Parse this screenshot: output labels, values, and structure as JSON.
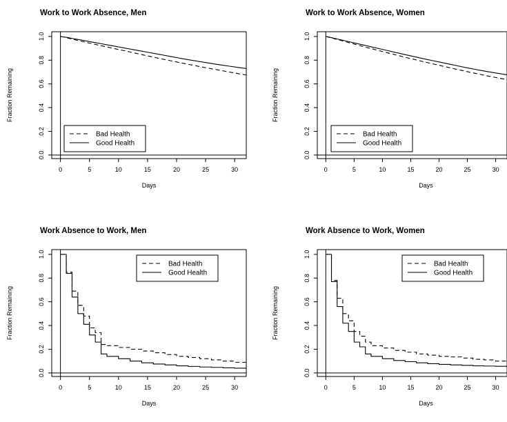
{
  "chart_data": [
    {
      "type": "line",
      "title": "Work to Work Absence, Men",
      "xlabel": "Days",
      "ylabel": "Fraction Remaining",
      "xlim": [
        -1.5,
        32
      ],
      "ylim": [
        -0.03,
        1.04
      ],
      "xticks": [
        0,
        5,
        10,
        15,
        20,
        25,
        30
      ],
      "yticks": [
        "0.0",
        "0.2",
        "0.4",
        "0.6",
        "0.8",
        "1.0"
      ],
      "legend": "bottom-left",
      "series": [
        {
          "name": "Bad Health",
          "dash": "dashed",
          "x": [
            0,
            1,
            2,
            3,
            4,
            5,
            6,
            7,
            8,
            9,
            10,
            11,
            12,
            13,
            14,
            15,
            16,
            17,
            18,
            19,
            20,
            21,
            22,
            23,
            24,
            25,
            26,
            27,
            28,
            29,
            30,
            31,
            32
          ],
          "y": [
            1.0,
            0.99,
            0.978,
            0.966,
            0.955,
            0.944,
            0.933,
            0.922,
            0.912,
            0.901,
            0.89,
            0.88,
            0.869,
            0.858,
            0.847,
            0.836,
            0.826,
            0.815,
            0.805,
            0.795,
            0.785,
            0.775,
            0.765,
            0.756,
            0.746,
            0.737,
            0.728,
            0.719,
            0.71,
            0.701,
            0.692,
            0.683,
            0.675
          ]
        },
        {
          "name": "Good Health",
          "dash": "solid",
          "x": [
            0,
            1,
            2,
            3,
            4,
            5,
            6,
            7,
            8,
            9,
            10,
            11,
            12,
            13,
            14,
            15,
            16,
            17,
            18,
            19,
            20,
            21,
            22,
            23,
            24,
            25,
            26,
            27,
            28,
            29,
            30,
            31,
            32
          ],
          "y": [
            1.0,
            0.993,
            0.984,
            0.975,
            0.966,
            0.957,
            0.948,
            0.939,
            0.93,
            0.921,
            0.912,
            0.903,
            0.894,
            0.885,
            0.876,
            0.867,
            0.858,
            0.849,
            0.84,
            0.831,
            0.822,
            0.813,
            0.804,
            0.796,
            0.788,
            0.78,
            0.772,
            0.764,
            0.757,
            0.75,
            0.743,
            0.736,
            0.73
          ]
        }
      ]
    },
    {
      "type": "line",
      "title": "Work to Work Absence, Women",
      "xlabel": "Days",
      "ylabel": "Fraction Remaining",
      "xlim": [
        -1.5,
        32
      ],
      "ylim": [
        -0.03,
        1.04
      ],
      "xticks": [
        0,
        5,
        10,
        15,
        20,
        25,
        30
      ],
      "yticks": [
        "0.0",
        "0.2",
        "0.4",
        "0.6",
        "0.8",
        "1.0"
      ],
      "legend": "bottom-left",
      "series": [
        {
          "name": "Bad Health",
          "dash": "dashed",
          "x": [
            0,
            1,
            2,
            3,
            4,
            5,
            6,
            7,
            8,
            9,
            10,
            11,
            12,
            13,
            14,
            15,
            16,
            17,
            18,
            19,
            20,
            21,
            22,
            23,
            24,
            25,
            26,
            27,
            28,
            29,
            30,
            31,
            32
          ],
          "y": [
            1.0,
            0.988,
            0.975,
            0.962,
            0.949,
            0.936,
            0.923,
            0.91,
            0.898,
            0.885,
            0.873,
            0.861,
            0.849,
            0.837,
            0.825,
            0.813,
            0.802,
            0.79,
            0.779,
            0.768,
            0.757,
            0.746,
            0.735,
            0.724,
            0.714,
            0.703,
            0.693,
            0.683,
            0.673,
            0.663,
            0.654,
            0.645,
            0.636
          ]
        },
        {
          "name": "Good Health",
          "dash": "solid",
          "x": [
            0,
            1,
            2,
            3,
            4,
            5,
            6,
            7,
            8,
            9,
            10,
            11,
            12,
            13,
            14,
            15,
            16,
            17,
            18,
            19,
            20,
            21,
            22,
            23,
            24,
            25,
            26,
            27,
            28,
            29,
            30,
            31,
            32
          ],
          "y": [
            1.0,
            0.99,
            0.979,
            0.968,
            0.957,
            0.946,
            0.935,
            0.924,
            0.913,
            0.902,
            0.891,
            0.88,
            0.869,
            0.858,
            0.847,
            0.836,
            0.826,
            0.815,
            0.805,
            0.795,
            0.785,
            0.775,
            0.765,
            0.755,
            0.745,
            0.735,
            0.726,
            0.717,
            0.708,
            0.7,
            0.692,
            0.684,
            0.677
          ]
        }
      ]
    },
    {
      "type": "line",
      "title": "Work Absence to Work, Men",
      "xlabel": "Days",
      "ylabel": "Fraction Remaining",
      "xlim": [
        -1.5,
        32
      ],
      "ylim": [
        -0.03,
        1.04
      ],
      "xticks": [
        0,
        5,
        10,
        15,
        20,
        25,
        30
      ],
      "yticks": [
        "0.0",
        "0.2",
        "0.4",
        "0.6",
        "0.8",
        "1.0"
      ],
      "legend": "top-right",
      "step": true,
      "series": [
        {
          "name": "Bad Health",
          "dash": "dashed",
          "x": [
            0,
            1,
            2,
            3,
            4,
            5,
            6,
            7,
            8,
            10,
            12,
            14,
            16,
            18,
            20,
            22,
            24,
            26,
            28,
            30,
            32
          ],
          "y": [
            1.0,
            0.85,
            0.69,
            0.57,
            0.48,
            0.38,
            0.34,
            0.24,
            0.23,
            0.215,
            0.2,
            0.185,
            0.17,
            0.155,
            0.14,
            0.13,
            0.12,
            0.11,
            0.1,
            0.09,
            0.08
          ]
        },
        {
          "name": "Good Health",
          "dash": "solid",
          "x": [
            0,
            1,
            2,
            3,
            4,
            5,
            6,
            7,
            8,
            10,
            12,
            14,
            16,
            18,
            20,
            22,
            24,
            26,
            28,
            30,
            32
          ],
          "y": [
            1.0,
            0.84,
            0.64,
            0.5,
            0.41,
            0.32,
            0.26,
            0.16,
            0.14,
            0.12,
            0.1,
            0.085,
            0.075,
            0.068,
            0.06,
            0.055,
            0.05,
            0.047,
            0.043,
            0.04,
            0.035
          ]
        }
      ]
    },
    {
      "type": "line",
      "title": "Work Absence to Work, Women",
      "xlabel": "Days",
      "ylabel": "Fraction Remaining",
      "xlim": [
        -1.5,
        32
      ],
      "ylim": [
        -0.03,
        1.04
      ],
      "xticks": [
        0,
        5,
        10,
        15,
        20,
        25,
        30
      ],
      "yticks": [
        "0.0",
        "0.2",
        "0.4",
        "0.6",
        "0.8",
        "1.0"
      ],
      "legend": "top-right",
      "step": true,
      "series": [
        {
          "name": "Bad Health",
          "dash": "dashed",
          "x": [
            0,
            1,
            2,
            3,
            4,
            5,
            6,
            7,
            8,
            10,
            12,
            14,
            16,
            18,
            20,
            22,
            24,
            26,
            28,
            30,
            32
          ],
          "y": [
            1.0,
            0.78,
            0.63,
            0.5,
            0.44,
            0.35,
            0.31,
            0.26,
            0.23,
            0.21,
            0.19,
            0.175,
            0.16,
            0.15,
            0.14,
            0.135,
            0.125,
            0.115,
            0.11,
            0.1,
            0.095
          ]
        },
        {
          "name": "Good Health",
          "dash": "solid",
          "x": [
            0,
            1,
            2,
            3,
            4,
            5,
            6,
            7,
            8,
            10,
            12,
            14,
            16,
            18,
            20,
            22,
            24,
            26,
            28,
            30,
            32
          ],
          "y": [
            1.0,
            0.77,
            0.56,
            0.42,
            0.35,
            0.26,
            0.22,
            0.16,
            0.14,
            0.12,
            0.105,
            0.095,
            0.085,
            0.078,
            0.072,
            0.068,
            0.064,
            0.06,
            0.058,
            0.056,
            0.054
          ]
        }
      ]
    }
  ]
}
